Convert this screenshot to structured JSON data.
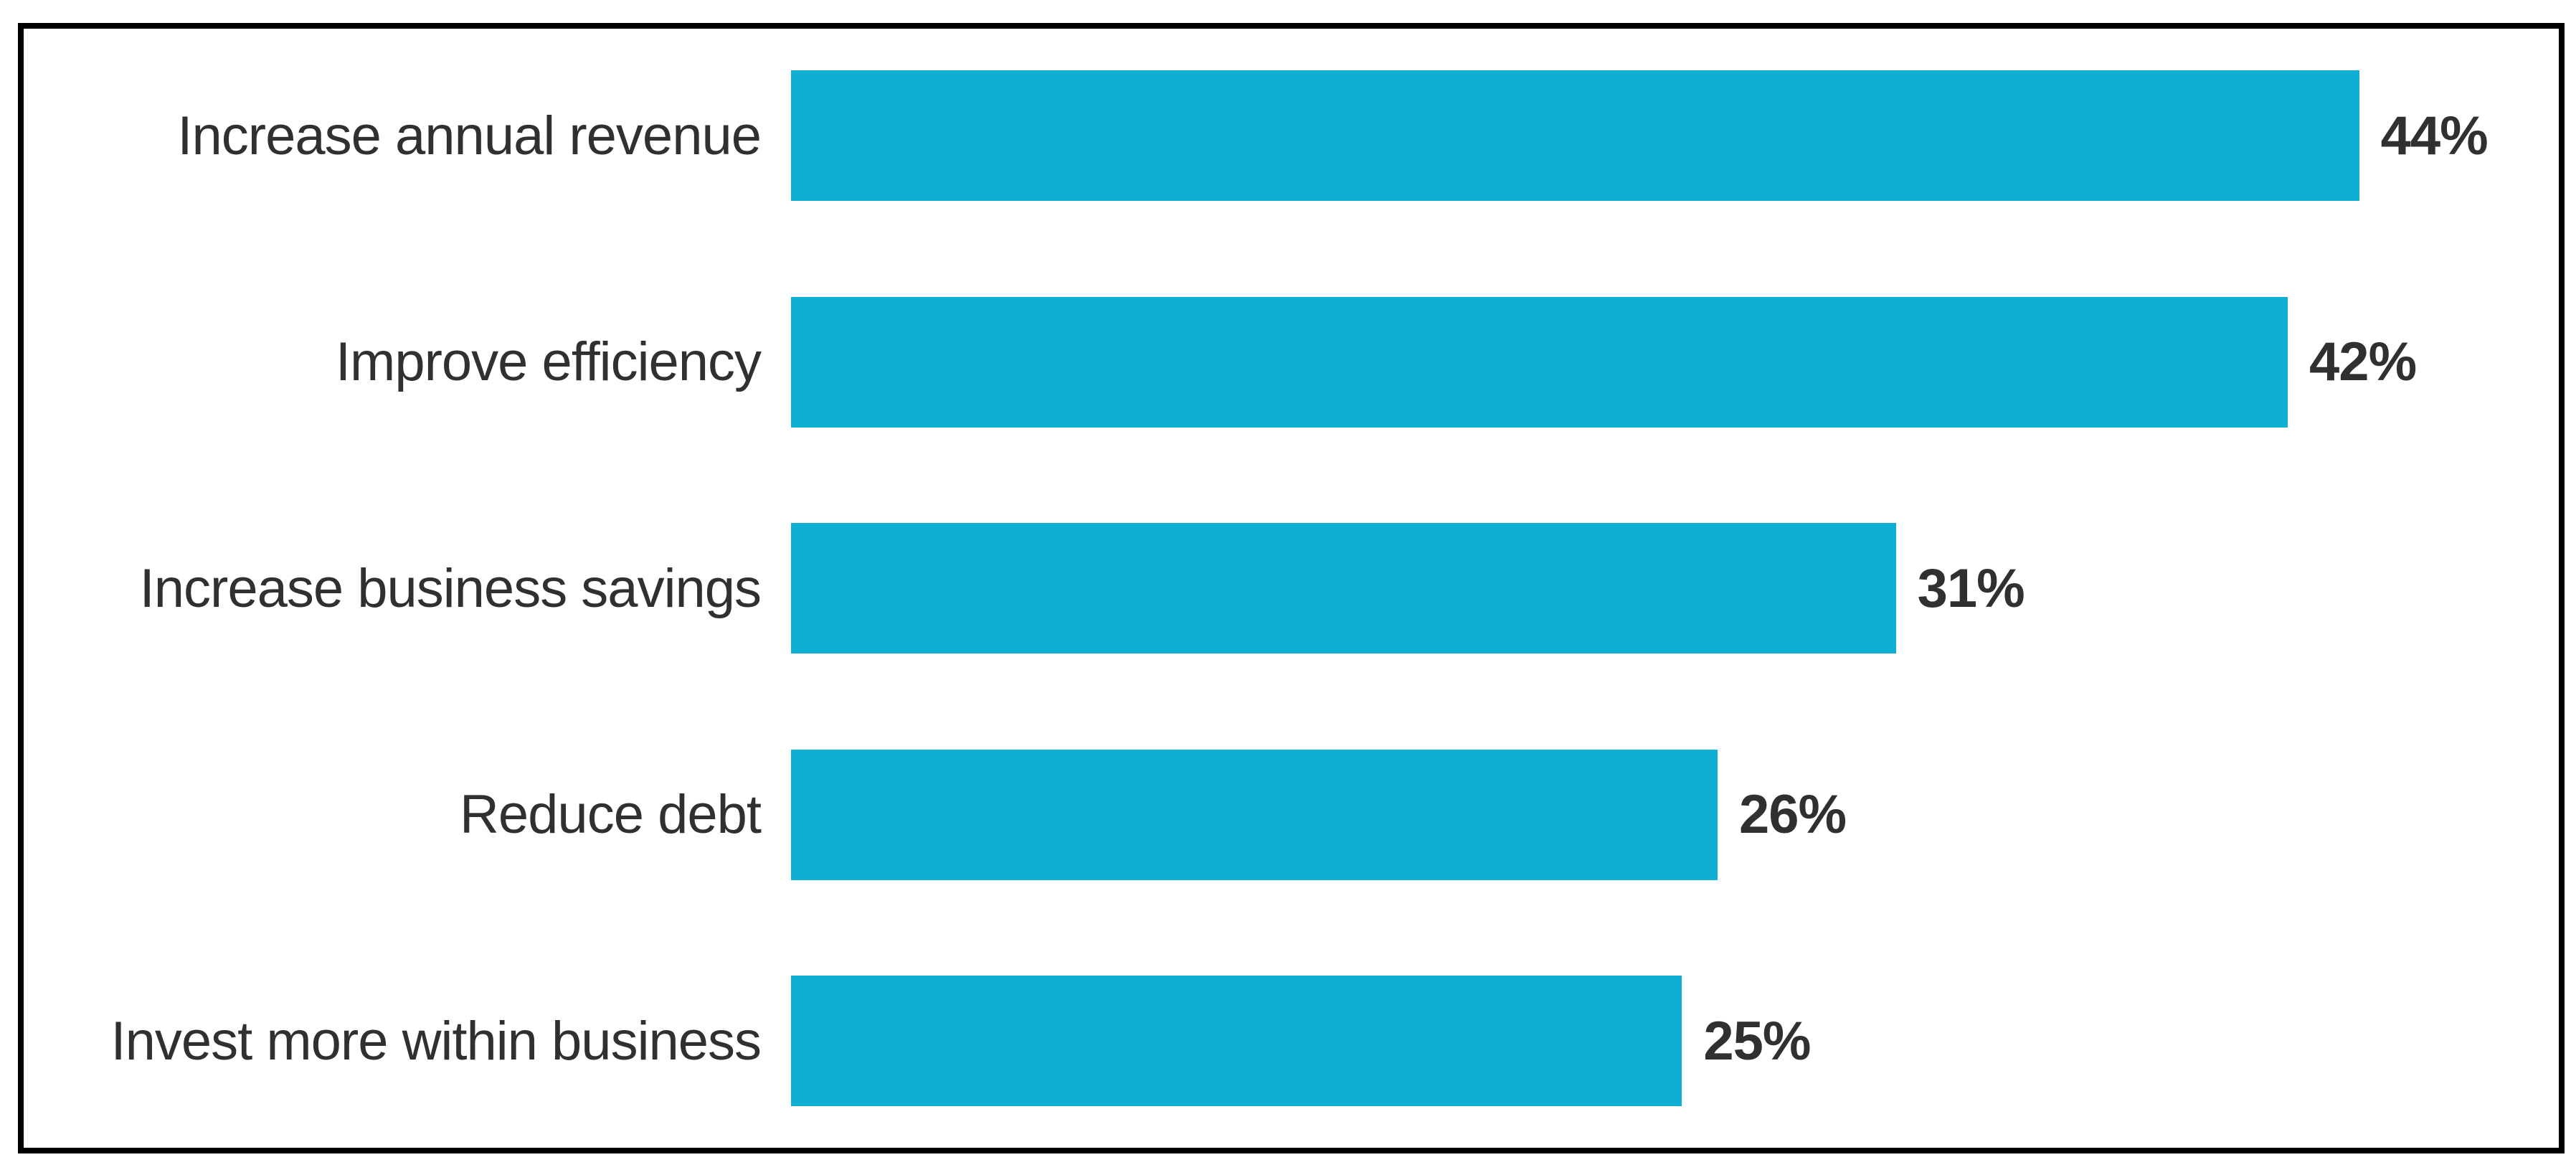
{
  "chart_data": {
    "type": "bar",
    "orientation": "horizontal",
    "title": "",
    "xlabel": "",
    "ylabel": "",
    "categories": [
      "Increase annual revenue",
      "Improve efficiency",
      "Increase business savings",
      "Reduce debt",
      "Invest more within business"
    ],
    "values": [
      44,
      42,
      31,
      26,
      25
    ],
    "value_labels": [
      "44%",
      "42%",
      "31%",
      "26%",
      "25%"
    ],
    "xlim": [
      0,
      49
    ],
    "grid": false,
    "legend": "none",
    "bar_color": "#0FAFD4",
    "label_color": "#303030",
    "frame_border_color": "#000000",
    "background_color": "#FFFFFF"
  }
}
